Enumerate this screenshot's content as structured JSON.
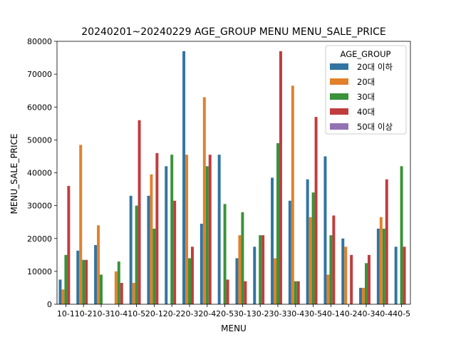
{
  "chart_data": {
    "type": "bar",
    "title": "20240201~20240229 AGE_GROUP MENU   MENU_SALE_PRICE",
    "xlabel": "MENU",
    "ylabel": "MENU_SALE_PRICE",
    "ylim": [
      0,
      80000
    ],
    "yticks": [
      0,
      10000,
      20000,
      30000,
      40000,
      50000,
      60000,
      70000,
      80000
    ],
    "grid": false,
    "legend_title": "AGE_GROUP",
    "legend_position": "top-right",
    "categories": [
      "10-1",
      "10-2",
      "10-3",
      "10-4",
      "10-5",
      "20-1",
      "20-2",
      "20-3",
      "20-4",
      "20-5",
      "30-1",
      "30-2",
      "30-3",
      "30-4",
      "30-5",
      "40-1",
      "40-2",
      "40-3",
      "40-4",
      "40-5"
    ],
    "series": [
      {
        "name": "20대 이하",
        "color": "#3274a1",
        "values": [
          7500,
          16300,
          18000,
          null,
          33000,
          33000,
          42000,
          77000,
          24500,
          45500,
          14000,
          17500,
          38500,
          31500,
          38000,
          45000,
          20000,
          5000,
          23000,
          17500
        ]
      },
      {
        "name": "20대",
        "color": "#e1812c",
        "values": [
          4500,
          48500,
          24000,
          10000,
          6500,
          39500,
          null,
          45500,
          63000,
          null,
          21000,
          null,
          14000,
          66500,
          26500,
          9000,
          17500,
          5000,
          26500,
          null
        ]
      },
      {
        "name": "30대",
        "color": "#3a923a",
        "values": [
          15000,
          13500,
          9000,
          13000,
          30000,
          23000,
          45500,
          14000,
          42000,
          30500,
          28000,
          21000,
          49000,
          7000,
          34000,
          21000,
          null,
          12500,
          23000,
          42000
        ]
      },
      {
        "name": "40대",
        "color": "#c03d3e",
        "values": [
          36000,
          13500,
          null,
          6500,
          56000,
          46000,
          31500,
          17500,
          45500,
          7500,
          7000,
          21000,
          77000,
          7000,
          57000,
          27000,
          15000,
          15000,
          38000,
          17500
        ]
      },
      {
        "name": "50대 이상",
        "color": "#9372b2",
        "values": [
          null,
          null,
          null,
          null,
          null,
          null,
          null,
          null,
          null,
          null,
          null,
          null,
          null,
          null,
          null,
          null,
          null,
          null,
          null,
          null
        ]
      }
    ]
  }
}
